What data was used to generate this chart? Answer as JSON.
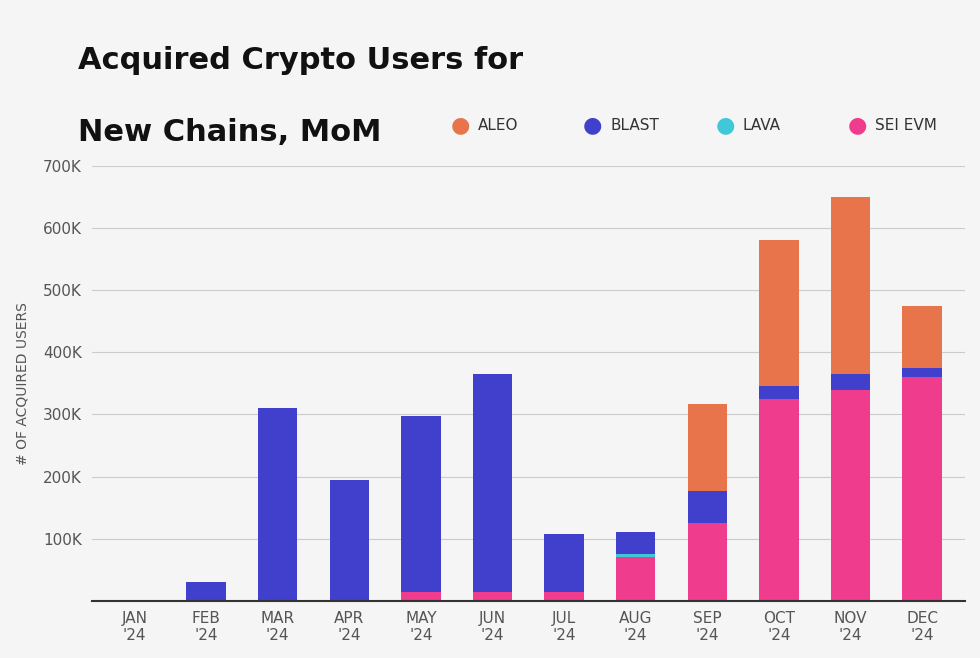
{
  "months": [
    "JAN\n'24",
    "FEB\n'24",
    "MAR\n'24",
    "APR\n'24",
    "MAY\n'24",
    "JUN\n'24",
    "JUL\n'24",
    "AUG\n'24",
    "SEP\n'24",
    "OCT\n'24",
    "NOV\n'24",
    "DEC\n'24"
  ],
  "blast": [
    0,
    30000,
    310000,
    195000,
    283000,
    350000,
    93000,
    35000,
    50000,
    20000,
    25000,
    15000
  ],
  "sei_evm": [
    0,
    0,
    0,
    0,
    15000,
    15000,
    15000,
    70000,
    126000,
    325000,
    340000,
    360000
  ],
  "lava": [
    0,
    0,
    0,
    0,
    0,
    0,
    0,
    6000,
    0,
    0,
    0,
    0
  ],
  "aleo": [
    0,
    0,
    0,
    0,
    0,
    0,
    0,
    0,
    140000,
    235000,
    285000,
    100000
  ],
  "colors": {
    "blast": "#4040cc",
    "sei_evm": "#f03c8c",
    "lava": "#40c8d8",
    "aleo": "#e8744c"
  },
  "title_line1": "Acquired Crypto Users for",
  "title_line2": "New Chains, MoM",
  "ylabel": "# OF ACQUIRED USERS",
  "ylim": [
    0,
    700000
  ],
  "yticks": [
    0,
    100000,
    200000,
    300000,
    400000,
    500000,
    600000,
    700000
  ],
  "ytick_labels": [
    "",
    "100K",
    "200K",
    "300K",
    "400K",
    "500K",
    "600K",
    "700K"
  ],
  "background_color": "#f5f5f5",
  "legend_labels": [
    "ALEO",
    "BLAST",
    "LAVA",
    "SEI EVM"
  ],
  "legend_colors": [
    "#e8744c",
    "#4040cc",
    "#40c8d8",
    "#f03c8c"
  ]
}
